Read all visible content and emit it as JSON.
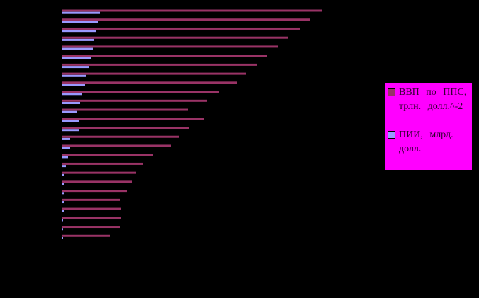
{
  "chart_data": {
    "type": "barh",
    "categories": [
      null,
      null,
      null,
      null,
      null,
      null,
      null,
      null,
      null,
      null,
      null,
      null,
      null,
      null,
      null,
      null,
      null,
      null,
      null,
      null,
      null,
      null,
      null,
      null,
      null,
      null
    ],
    "series": [
      {
        "name": "ВВП по ППС, трлн. долл.^-2",
        "color": "#993366",
        "values": [
          366,
          349,
          335,
          319,
          305,
          289,
          275,
          259,
          246,
          221,
          204,
          178,
          200,
          179,
          165,
          153,
          128,
          114,
          104,
          98,
          91,
          81,
          83,
          83,
          81,
          67
        ]
      },
      {
        "name": "ПИИ, млрд. долл.",
        "color": "#9999ff",
        "values": [
          53,
          50,
          48,
          45,
          43,
          40,
          37,
          34,
          32,
          28,
          25,
          21,
          23,
          24,
          11,
          11,
          8,
          5,
          3,
          2,
          2,
          2,
          2,
          1,
          1,
          1
        ]
      }
    ],
    "xlim": [
      0,
      449
    ],
    "legend": "right"
  }
}
